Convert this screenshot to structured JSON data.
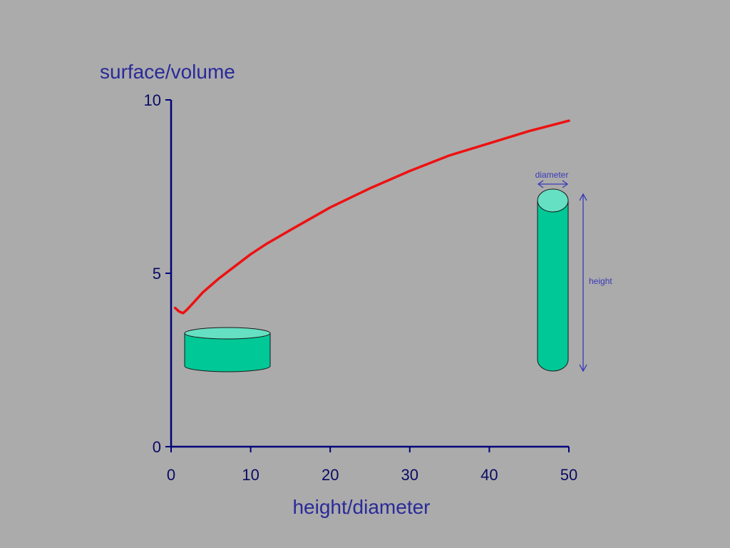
{
  "colors": {
    "background": "#ababab",
    "axis": "#00007a",
    "axis_text": "#2a2a9a",
    "curve": "#ee1111",
    "cylinder_body": "#00c896",
    "cylinder_top": "#66e0c2",
    "annotation": "#3a3ab8"
  },
  "chart_data": {
    "type": "line",
    "title": "",
    "xlabel": "height/diameter",
    "ylabel": "surface/volume",
    "xlim": [
      0,
      50
    ],
    "ylim": [
      0,
      10
    ],
    "xticks": [
      0,
      10,
      20,
      30,
      40,
      50
    ],
    "yticks": [
      0,
      5,
      10
    ],
    "grid": false,
    "legend": "none",
    "series": [
      {
        "color": "#ee1111",
        "x": [
          0.5,
          1,
          1.5,
          2,
          3,
          4,
          5,
          6,
          8,
          10,
          12,
          15,
          20,
          25,
          30,
          35,
          40,
          45,
          50
        ],
        "y": [
          4.0,
          3.9,
          3.85,
          3.95,
          4.2,
          4.45,
          4.65,
          4.85,
          5.2,
          5.55,
          5.85,
          6.25,
          6.9,
          7.45,
          7.95,
          8.4,
          8.75,
          9.1,
          9.4
        ]
      }
    ],
    "annotations": {
      "diameter_label": "diameter",
      "height_label": "height",
      "illustrations": [
        "short-wide-cylinder",
        "tall-narrow-cylinder"
      ]
    }
  }
}
